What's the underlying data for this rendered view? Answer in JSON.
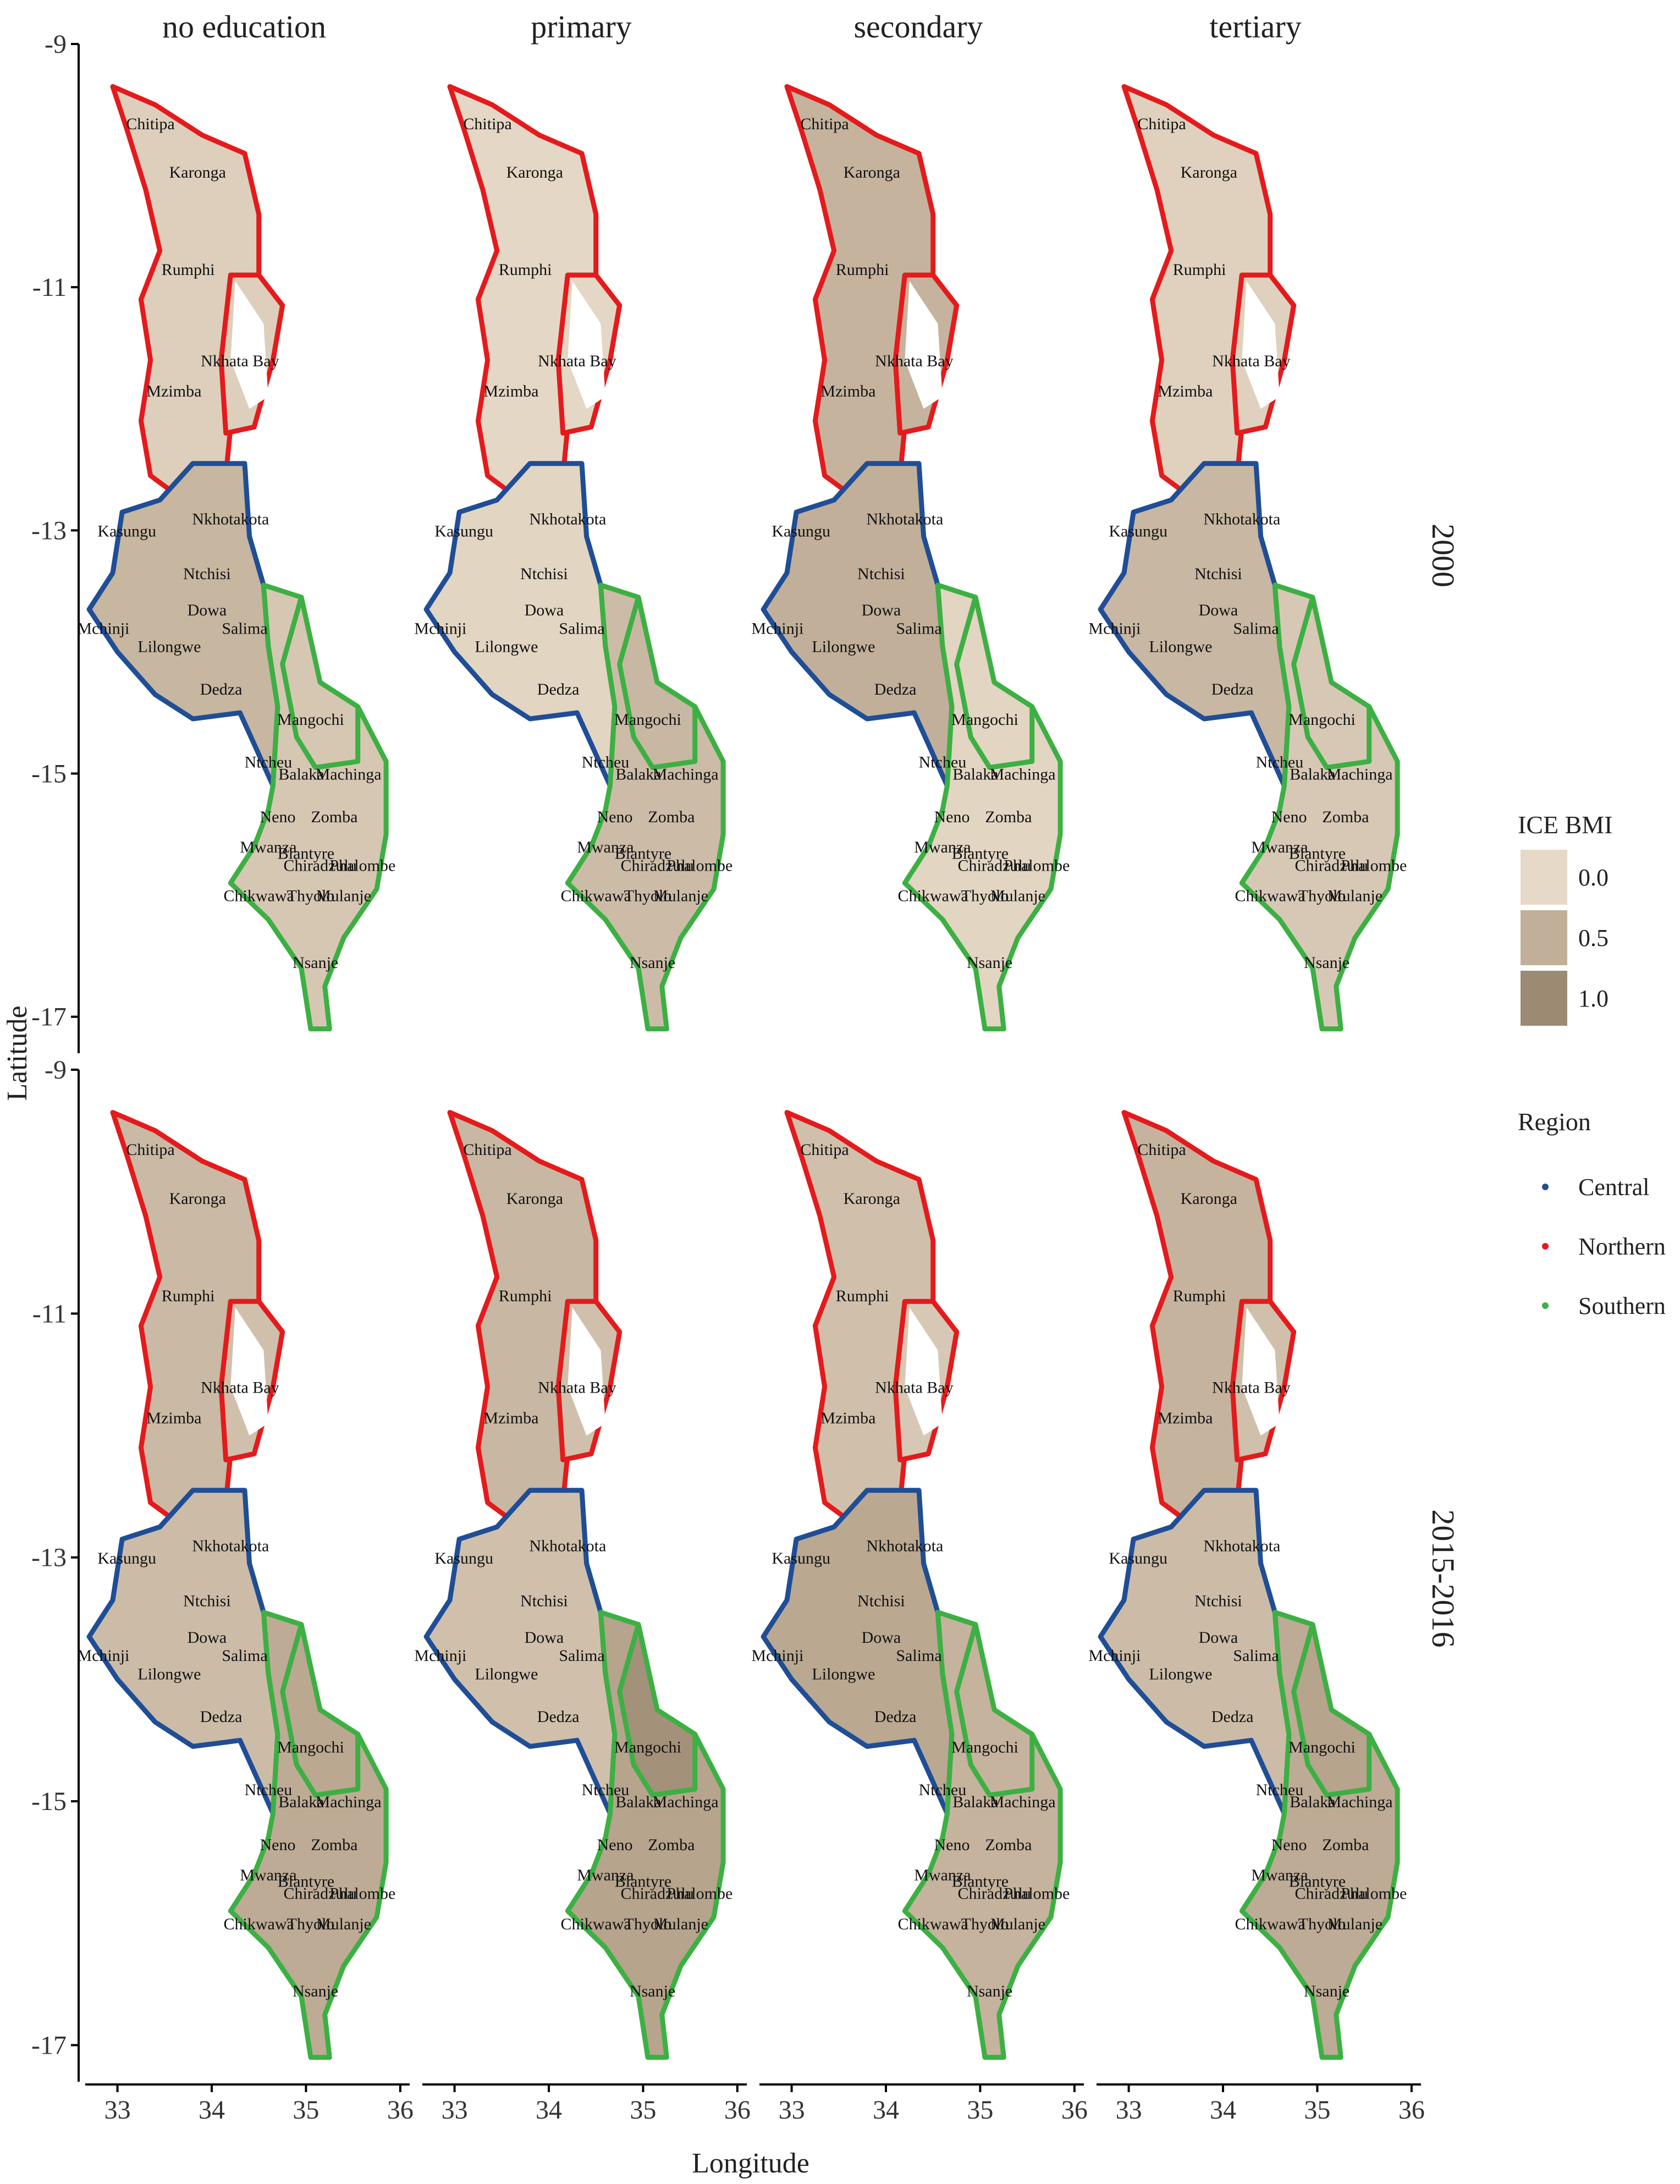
{
  "map": {
    "facet_columns": [
      "no education",
      "primary",
      "secondary",
      "tertiary"
    ],
    "facet_rows": [
      "2000",
      "2015-2016"
    ],
    "x_axis": {
      "title": "Longitude",
      "ticks": [
        "33",
        "34",
        "35",
        "36"
      ],
      "range": [
        32.6,
        36.1
      ]
    },
    "y_axis": {
      "title": "Latitude",
      "ticks": [
        "-9",
        "-11",
        "-13",
        "-15",
        "-17"
      ],
      "range": [
        -17.3,
        -9.0
      ]
    },
    "fill_legend": {
      "title": "ICE BMI",
      "entries": [
        {
          "label": "0.0",
          "color": "#e6d9c7"
        },
        {
          "label": "0.5",
          "color": "#c1af99"
        },
        {
          "label": "1.0",
          "color": "#9c8a72"
        }
      ]
    },
    "region_legend": {
      "title": "Region",
      "entries": [
        {
          "label": "Central",
          "color": "#1f4e96"
        },
        {
          "label": "Northern",
          "color": "#e41a1c"
        },
        {
          "label": "Southern",
          "color": "#3cb043"
        }
      ]
    },
    "district_labels": [
      {
        "name": "Chitipa",
        "lon": 33.35,
        "lat": -9.7,
        "region": "Northern"
      },
      {
        "name": "Karonga",
        "lon": 33.85,
        "lat": -10.1,
        "region": "Northern"
      },
      {
        "name": "Rumphi",
        "lon": 33.75,
        "lat": -10.9,
        "region": "Northern"
      },
      {
        "name": "Nkhata Bay",
        "lon": 34.3,
        "lat": -11.65,
        "region": "Northern"
      },
      {
        "name": "Mzimba",
        "lon": 33.6,
        "lat": -11.9,
        "region": "Northern"
      },
      {
        "name": "Kasungu",
        "lon": 33.1,
        "lat": -13.05,
        "region": "Central"
      },
      {
        "name": "Nkhotakota",
        "lon": 34.2,
        "lat": -12.95,
        "region": "Central"
      },
      {
        "name": "Ntchisi",
        "lon": 33.95,
        "lat": -13.4,
        "region": "Central"
      },
      {
        "name": "Dowa",
        "lon": 33.95,
        "lat": -13.7,
        "region": "Central"
      },
      {
        "name": "Mchinji",
        "lon": 32.85,
        "lat": -13.85,
        "region": "Central"
      },
      {
        "name": "Salima",
        "lon": 34.35,
        "lat": -13.85,
        "region": "Central"
      },
      {
        "name": "Lilongwe",
        "lon": 33.55,
        "lat": -14.0,
        "region": "Central"
      },
      {
        "name": "Dedza",
        "lon": 34.1,
        "lat": -14.35,
        "region": "Central"
      },
      {
        "name": "Mangochi",
        "lon": 35.05,
        "lat": -14.6,
        "region": "Southern"
      },
      {
        "name": "Ntcheu",
        "lon": 34.6,
        "lat": -14.95,
        "region": "Central"
      },
      {
        "name": "Balaka",
        "lon": 34.95,
        "lat": -15.05,
        "region": "Southern"
      },
      {
        "name": "Machinga",
        "lon": 35.45,
        "lat": -15.05,
        "region": "Southern"
      },
      {
        "name": "Neno",
        "lon": 34.7,
        "lat": -15.4,
        "region": "Southern"
      },
      {
        "name": "Zomba",
        "lon": 35.3,
        "lat": -15.4,
        "region": "Southern"
      },
      {
        "name": "Mwanza",
        "lon": 34.6,
        "lat": -15.65,
        "region": "Southern"
      },
      {
        "name": "Blantyre",
        "lon": 35.0,
        "lat": -15.7,
        "region": "Southern"
      },
      {
        "name": "Chiradzulu",
        "lon": 35.15,
        "lat": -15.8,
        "region": "Southern"
      },
      {
        "name": "Phalombe",
        "lon": 35.6,
        "lat": -15.8,
        "region": "Southern"
      },
      {
        "name": "Chikwawa",
        "lon": 34.5,
        "lat": -16.05,
        "region": "Southern"
      },
      {
        "name": "Thyolo",
        "lon": 35.05,
        "lat": -16.05,
        "region": "Southern"
      },
      {
        "name": "Mulanje",
        "lon": 35.4,
        "lat": -16.05,
        "region": "Southern"
      },
      {
        "name": "Nsanje",
        "lon": 35.1,
        "lat": -16.6,
        "region": "Southern"
      }
    ],
    "ice_bmi": {
      "2000": {
        "no education": {
          "Northern": 0.12,
          "Central": 0.42,
          "Southern": 0.22,
          "Nkhata Bay": 0.12,
          "Mangochi": 0.22
        },
        "primary": {
          "Northern": 0.02,
          "Central": 0.05,
          "Southern": 0.35,
          "Nkhata Bay": 0.02,
          "Mangochi": 0.4
        },
        "secondary": {
          "Northern": 0.45,
          "Central": 0.5,
          "Southern": 0.05,
          "Nkhata Bay": 0.45,
          "Mangochi": 0.05
        },
        "tertiary": {
          "Northern": 0.1,
          "Central": 0.4,
          "Southern": 0.2,
          "Nkhata Bay": 0.1,
          "Mangochi": 0.2
        }
      },
      "2015-2016": {
        "no education": {
          "Northern": 0.38,
          "Central": 0.35,
          "Southern": 0.55,
          "Nkhata Bay": 0.3,
          "Mangochi": 0.6
        },
        "primary": {
          "Northern": 0.4,
          "Central": 0.3,
          "Southern": 0.65,
          "Nkhata Bay": 0.3,
          "Mangochi": 0.9
        },
        "secondary": {
          "Northern": 0.3,
          "Central": 0.6,
          "Southern": 0.45,
          "Nkhata Bay": 0.2,
          "Mangochi": 0.45
        },
        "tertiary": {
          "Northern": 0.45,
          "Central": 0.35,
          "Southern": 0.55,
          "Nkhata Bay": 0.3,
          "Mangochi": 0.65
        }
      }
    }
  }
}
